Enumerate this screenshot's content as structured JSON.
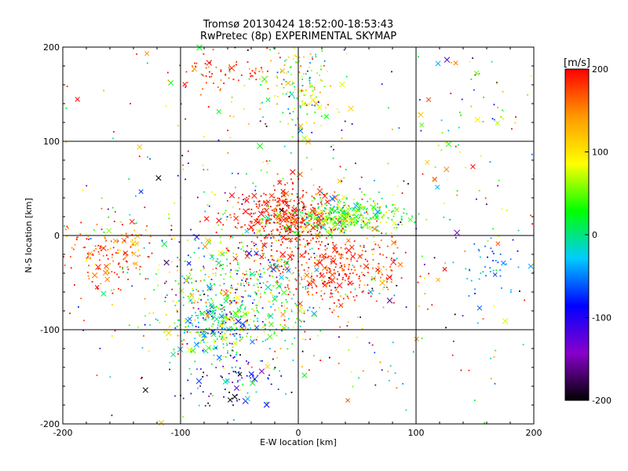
{
  "chart_data": {
    "type": "scatter",
    "title": "Tromsø 20130424 18:52:00-18:53:43",
    "subtitle": "RwPretec (8p) EXPERIMENTAL SKYMAP",
    "xlabel": "E-W location [km]",
    "ylabel": "N-S location [km]",
    "xlim": [
      -200,
      200
    ],
    "ylim": [
      -200,
      200
    ],
    "xticks": [
      "-200",
      "-100",
      "0",
      "100",
      "200"
    ],
    "yticks": [
      "-200",
      "-100",
      "0",
      "100",
      "200"
    ],
    "grid": true,
    "colorbar": {
      "label": "[m/s]",
      "range": [
        -200,
        200
      ],
      "ticks": [
        "200",
        "100",
        "0",
        "-100",
        "-200"
      ],
      "colormap": [
        "#000000",
        "#8800cc",
        "#0000ff",
        "#00ccff",
        "#00ff00",
        "#ffff00",
        "#ff9900",
        "#ff0000"
      ]
    },
    "clusters": [
      {
        "cx": -10,
        "cy": 20,
        "sx": 20,
        "sy": 15,
        "n": 420,
        "v": 190,
        "vs": 20
      },
      {
        "cx": 40,
        "cy": 20,
        "sx": 25,
        "sy": 10,
        "n": 380,
        "v": 40,
        "vs": 40
      },
      {
        "cx": 25,
        "cy": -35,
        "sx": 30,
        "sy": 20,
        "n": 350,
        "v": 185,
        "vs": 25
      },
      {
        "cx": -70,
        "cy": -95,
        "sx": 20,
        "sy": 15,
        "n": 250,
        "v": 0,
        "vs": 60
      },
      {
        "cx": -50,
        "cy": -55,
        "sx": 35,
        "sy": 30,
        "n": 420,
        "v": 50,
        "vs": 90
      },
      {
        "cx": -160,
        "cy": -20,
        "sx": 20,
        "sy": 20,
        "n": 160,
        "v": 170,
        "vs": 40
      },
      {
        "cx": 0,
        "cy": 160,
        "sx": 15,
        "sy": 25,
        "n": 160,
        "v": 60,
        "vs": 60
      },
      {
        "cx": -65,
        "cy": 175,
        "sx": 20,
        "sy": 10,
        "n": 70,
        "v": 180,
        "vs": 30
      },
      {
        "cx": 170,
        "cy": -30,
        "sx": 15,
        "sy": 12,
        "n": 40,
        "v": -50,
        "vs": 20
      },
      {
        "cx": 150,
        "cy": 130,
        "sx": 25,
        "sy": 30,
        "n": 40,
        "v": 20,
        "vs": 100
      },
      {
        "cx": -60,
        "cy": -150,
        "sx": 25,
        "sy": 15,
        "n": 90,
        "v": -100,
        "vs": 80
      },
      {
        "cx": 0,
        "cy": 0,
        "sx": 120,
        "sy": 110,
        "n": 650,
        "v": 40,
        "vs": 130
      }
    ]
  }
}
